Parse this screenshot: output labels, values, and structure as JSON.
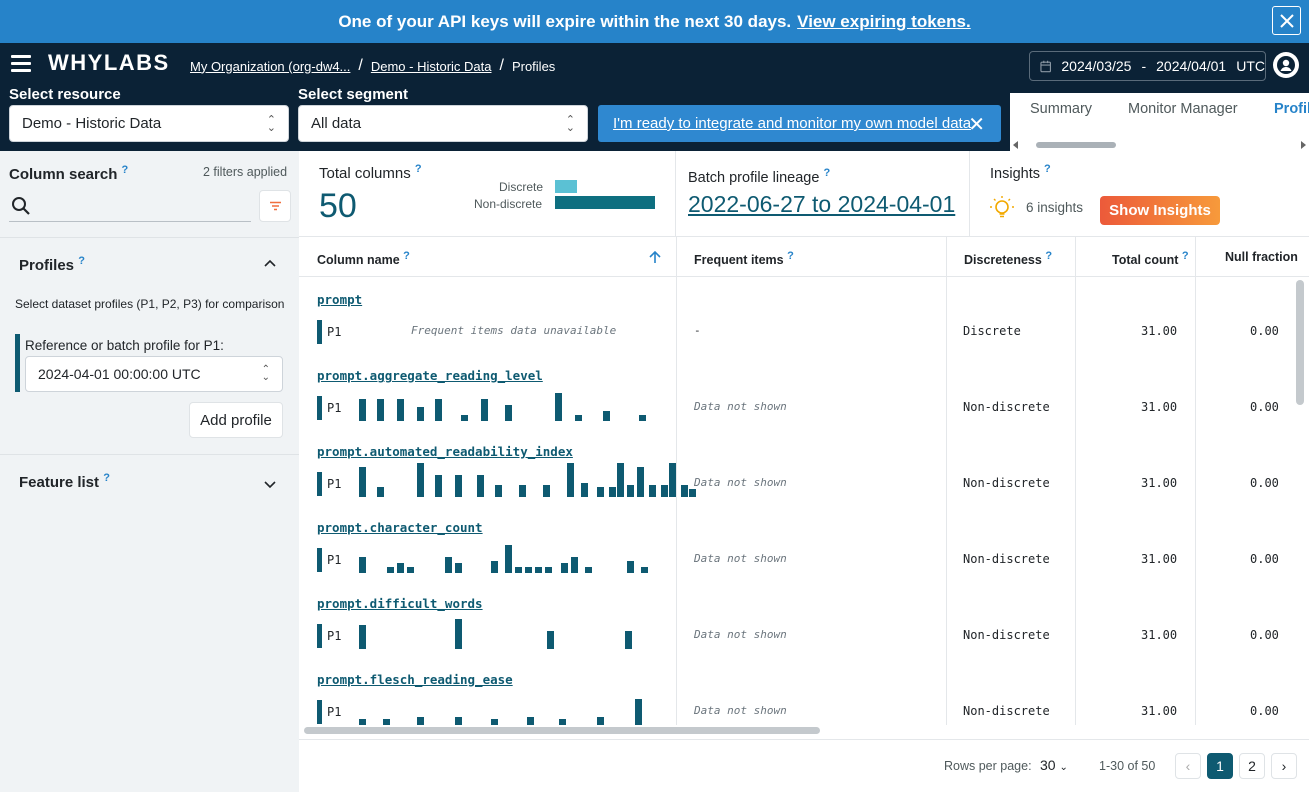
{
  "banner": {
    "text": "One of your API keys will expire within the next 30 days.",
    "link": "View expiring tokens.",
    "close_icon": "close-icon"
  },
  "header": {
    "logo": "WHYLABS",
    "breadcrumbs": [
      "My Organization (org-dw4...",
      "Demo - Historic Data",
      "Profiles"
    ],
    "date_start": "2024/03/25",
    "date_sep": "-",
    "date_end": "2024/04/01",
    "timezone": "UTC"
  },
  "selectors": {
    "resource_label": "Select resource",
    "resource_value": "Demo - Historic Data",
    "segment_label": "Select segment",
    "segment_value": "All data",
    "integrate_text": "I'm ready to integrate and monitor my own model data"
  },
  "tabs": [
    "Summary",
    "Monitor Manager",
    "Profil"
  ],
  "sidebar": {
    "column_search_label": "Column search",
    "filters_applied": "2 filters applied",
    "search_value": "",
    "profiles_label": "Profiles",
    "profiles_desc": "Select dataset profiles (P1, P2, P3) for comparison",
    "reference_label": "Reference or batch profile for P1:",
    "reference_value": "2024-04-01 00:00:00 UTC",
    "add_profile": "Add profile",
    "feature_list_label": "Feature list"
  },
  "summary": {
    "total_columns_label": "Total columns",
    "total_columns_value": "50",
    "discrete_label": "Discrete",
    "nondiscrete_label": "Non-discrete",
    "discrete_fraction": 0.4,
    "nondiscrete_fraction": 1.0,
    "lineage_label": "Batch profile lineage",
    "lineage_value": "2022-06-27 to 2024-04-01",
    "insights_label": "Insights",
    "insights_count": "6 insights",
    "show_insights": "Show Insights"
  },
  "table": {
    "headers": [
      "Column name",
      "Frequent items",
      "Discreteness",
      "Total count",
      "Null fraction"
    ],
    "rows": [
      {
        "name": "prompt",
        "profile": "P1",
        "histogram": [],
        "unavailable": "Frequent items data unavailable",
        "frequent": "-",
        "frequent_italic": false,
        "discreteness": "Discrete",
        "total_count": "31.00",
        "null_fraction": "0.00"
      },
      {
        "name": "prompt.aggregate_reading_level",
        "profile": "P1",
        "histogram": [
          0,
          0,
          0,
          0,
          0,
          0,
          0,
          0,
          0,
          0,
          0,
          0,
          0,
          0,
          0,
          0,
          0,
          0,
          0,
          0,
          0,
          0,
          0,
          0,
          0,
          0,
          0,
          0,
          0,
          0,
          0,
          0,
          0,
          0,
          0,
          0,
          0,
          0,
          0,
          0,
          0,
          0,
          0
        ],
        "unavailable": "",
        "frequent": "Data not shown",
        "frequent_italic": true,
        "discreteness": "Non-discrete",
        "total_count": "31.00",
        "null_fraction": "0.00"
      },
      {
        "name": "prompt.automated_readability_index",
        "profile": "P1",
        "histogram": [],
        "unavailable": "",
        "frequent": "Data not shown",
        "frequent_italic": true,
        "discreteness": "Non-discrete",
        "total_count": "31.00",
        "null_fraction": "0.00"
      },
      {
        "name": "prompt.character_count",
        "profile": "P1",
        "histogram": [],
        "unavailable": "",
        "frequent": "Data not shown",
        "frequent_italic": true,
        "discreteness": "Non-discrete",
        "total_count": "31.00",
        "null_fraction": "0.00"
      },
      {
        "name": "prompt.difficult_words",
        "profile": "P1",
        "histogram": [],
        "unavailable": "",
        "frequent": "Data not shown",
        "frequent_italic": true,
        "discreteness": "Non-discrete",
        "total_count": "31.00",
        "null_fraction": "0.00"
      },
      {
        "name": "prompt.flesch_reading_ease",
        "profile": "P1",
        "histogram": [],
        "unavailable": "",
        "frequent": "Data not shown",
        "frequent_italic": true,
        "discreteness": "Non-discrete",
        "total_count": "31.00",
        "null_fraction": "0.00"
      }
    ]
  },
  "pagination": {
    "rows_per_page_label": "Rows per page:",
    "rows_per_page": "30",
    "range": "1-30 of 50",
    "pages": [
      "1",
      "2"
    ],
    "current_page": "1"
  },
  "colors": {
    "banner": "#2683c9",
    "navbar": "#0b2236",
    "accent": "#0e5a71",
    "discrete_bar": "#5bc1d4",
    "insights_button": "#f06f3e"
  }
}
